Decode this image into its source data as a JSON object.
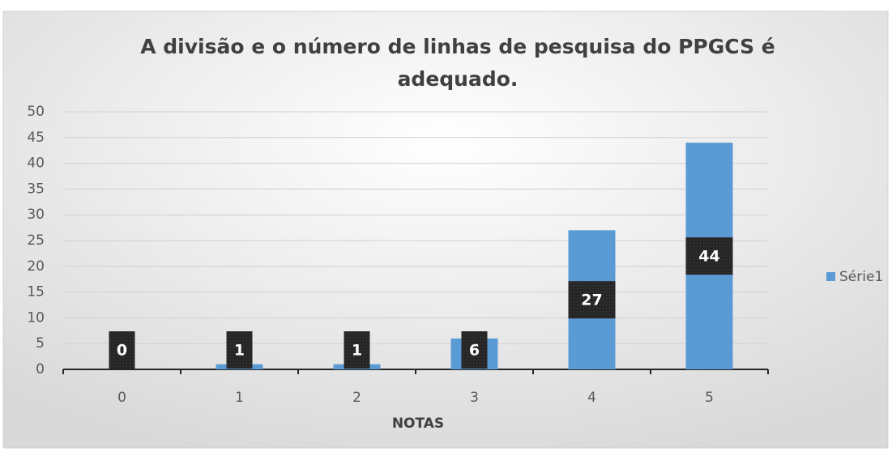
{
  "chart_data": {
    "type": "bar",
    "title": "A divisão e o número de linhas de pesquisa do PPGCS é adequado.",
    "x_label": "NOTAS",
    "categories": [
      "0",
      "1",
      "2",
      "3",
      "4",
      "5"
    ],
    "series": [
      {
        "name": "Série1",
        "color": "#5b9bd5",
        "values": [
          0,
          1,
          1,
          6,
          27,
          44
        ]
      }
    ],
    "ylim": [
      0,
      50
    ],
    "yticks": [
      0,
      5,
      10,
      15,
      20,
      25,
      30,
      35,
      40,
      45,
      50
    ],
    "grid": true,
    "legend": "right",
    "data_labels": true
  }
}
